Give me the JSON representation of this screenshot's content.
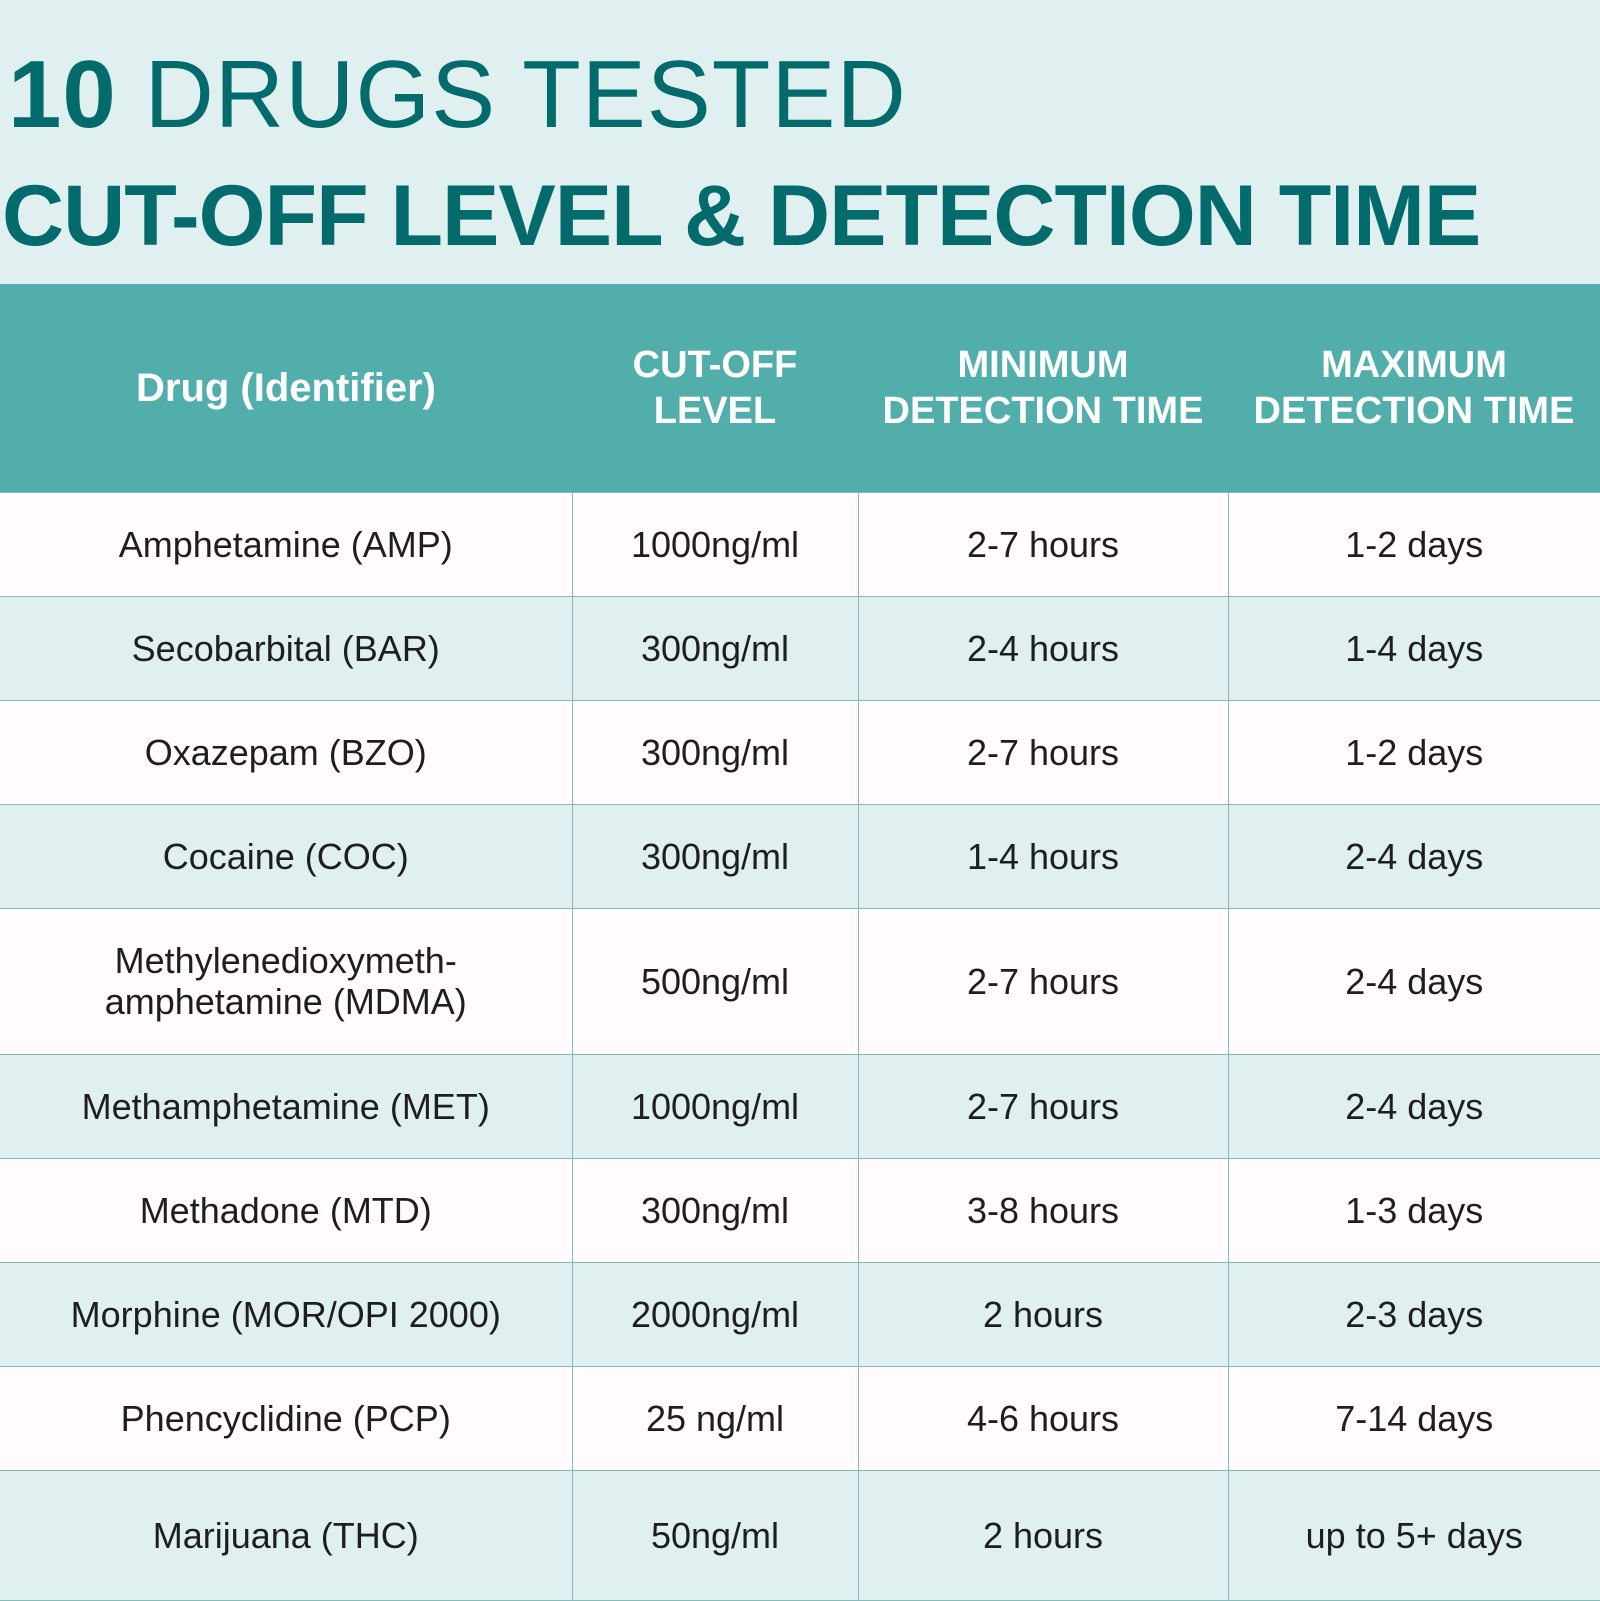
{
  "title": {
    "number": "10",
    "line1_rest": "DRUGS TESTED",
    "line2": "CUT-OFF LEVEL & DETECTION TIME"
  },
  "table": {
    "headers": [
      "Drug (Identifier)",
      "CUT-OFF LEVEL",
      "MINIMUM DETECTION TIME",
      "MAXIMUM DETECTION TIME"
    ],
    "header_lines": {
      "cutoff": [
        "CUT-OFF",
        "LEVEL"
      ],
      "min": [
        "MINIMUM",
        "DETECTION TIME"
      ],
      "max": [
        "MAXIMUM",
        "DETECTION TIME"
      ]
    },
    "rows": [
      {
        "drug": "Amphetamine (AMP)",
        "cutoff": "1000ng/ml",
        "min": "2-7 hours",
        "max": "1-2 days"
      },
      {
        "drug": "Secobarbital (BAR)",
        "cutoff": "300ng/ml",
        "min": "2-4 hours",
        "max": "1-4 days"
      },
      {
        "drug": "Oxazepam (BZO)",
        "cutoff": "300ng/ml",
        "min": "2-7 hours",
        "max": "1-2 days"
      },
      {
        "drug": "Cocaine (COC)",
        "cutoff": "300ng/ml",
        "min": "1-4 hours",
        "max": "2-4 days"
      },
      {
        "drug_line1": "Methylenedioxymeth-",
        "drug_line2": "amphetamine (MDMA)",
        "cutoff": "500ng/ml",
        "min": "2-7 hours",
        "max": "2-4 days"
      },
      {
        "drug": "Methamphetamine (MET)",
        "cutoff": "1000ng/ml",
        "min": "2-7 hours",
        "max": "2-4 days"
      },
      {
        "drug": "Methadone (MTD)",
        "cutoff": "300ng/ml",
        "min": "3-8 hours",
        "max": "1-3 days"
      },
      {
        "drug": "Morphine (MOR/OPI 2000)",
        "cutoff": "2000ng/ml",
        "min": "2 hours",
        "max": "2-3 days"
      },
      {
        "drug": "Phencyclidine (PCP)",
        "cutoff": "25 ng/ml",
        "min": "4-6 hours",
        "max": "7-14 days"
      },
      {
        "drug": "Marijuana (THC)",
        "cutoff": "50ng/ml",
        "min": "2 hours",
        "max": "up to 5+ days"
      }
    ]
  },
  "colors": {
    "title": "#036b6b",
    "header_bg": "#52aeab",
    "row_light": "#fffcfb",
    "row_tint": "#e0f0f0",
    "border": "#7fbcbc"
  }
}
